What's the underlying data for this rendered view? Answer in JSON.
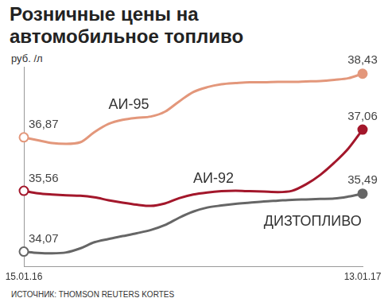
{
  "chart_data": {
    "type": "line",
    "title": "Розничные цены на автомобильное топливо",
    "ylabel": "руб. /л",
    "source": "ИСТОЧНИК: THOMSON REUTERS KORTES",
    "categories": [
      "15.01.16",
      null,
      null,
      null,
      null,
      null,
      null,
      null,
      null,
      null,
      null,
      null,
      null,
      null,
      null,
      null,
      null,
      null,
      null,
      null,
      null,
      null,
      null,
      null,
      "13.01.17"
    ],
    "series": [
      {
        "name": "АИ-95",
        "color": "#e3977b",
        "marker": "circle",
        "values": [
          36.87,
          36.8,
          36.73,
          36.71,
          36.75,
          37.0,
          37.2,
          37.3,
          37.35,
          37.38,
          37.5,
          37.75,
          37.98,
          38.1,
          38.17,
          38.2,
          38.22,
          38.22,
          38.23,
          38.23,
          38.24,
          38.25,
          38.28,
          38.32,
          38.43
        ],
        "value_labels": [
          "36,87",
          null,
          null,
          null,
          null,
          null,
          null,
          null,
          null,
          null,
          null,
          null,
          null,
          null,
          null,
          null,
          null,
          null,
          null,
          null,
          null,
          null,
          null,
          null,
          "38,43"
        ]
      },
      {
        "name": "АИ-92",
        "color": "#a3172b",
        "marker": "circle",
        "values": [
          35.56,
          35.5,
          35.47,
          35.45,
          35.44,
          35.4,
          35.33,
          35.27,
          35.22,
          35.19,
          35.25,
          35.38,
          35.47,
          35.52,
          35.55,
          35.56,
          35.55,
          35.54,
          35.53,
          35.56,
          35.72,
          35.95,
          36.25,
          36.6,
          37.06
        ],
        "value_labels": [
          "35,56",
          null,
          null,
          null,
          null,
          null,
          null,
          null,
          null,
          null,
          null,
          null,
          null,
          null,
          null,
          null,
          null,
          null,
          null,
          null,
          null,
          null,
          null,
          null,
          "37,06"
        ]
      },
      {
        "name": "ДИЗТОПЛИВО",
        "color": "#666666",
        "marker": "circle",
        "values": [
          34.07,
          34.04,
          34.03,
          34.05,
          34.15,
          34.3,
          34.38,
          34.45,
          34.52,
          34.6,
          34.72,
          34.9,
          35.05,
          35.15,
          35.2,
          35.24,
          35.27,
          35.3,
          35.32,
          35.34,
          35.35,
          35.36,
          35.37,
          35.42,
          35.49
        ],
        "value_labels": [
          "34,07",
          null,
          null,
          null,
          null,
          null,
          null,
          null,
          null,
          null,
          null,
          null,
          null,
          null,
          null,
          null,
          null,
          null,
          null,
          null,
          null,
          null,
          null,
          null,
          "35,49"
        ]
      }
    ],
    "ylim": [
      33.7,
      38.6
    ],
    "grid": false,
    "data_labels": true,
    "tick_labels": "x"
  }
}
